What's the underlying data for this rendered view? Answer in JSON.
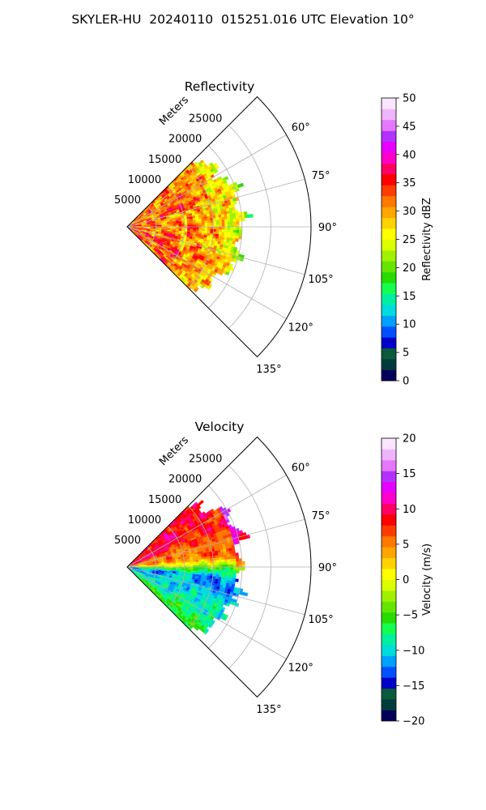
{
  "figure": {
    "title": "SKYLER-HU  20240110  015251.016 UTC Elevation 10°"
  },
  "chart_data": [
    {
      "type": "polar-sector",
      "title": "Reflectivity",
      "range_label": "Meters",
      "theta_range_deg": [
        45,
        135
      ],
      "r_max": 32000,
      "radial_ticks": [
        5000,
        10000,
        15000,
        20000,
        25000
      ],
      "radial_tick_labels": [
        "5000",
        "10000",
        "15000",
        "20000",
        "25000"
      ],
      "angle_ticks": [
        60,
        75,
        90,
        105,
        120,
        135
      ],
      "angle_tick_labels": [
        "60°",
        "75°",
        "90°",
        "105°",
        "120°",
        "135°"
      ],
      "grid": true,
      "data_extent_m": 22000,
      "colorbar": {
        "label": "Reflectivity dBZ",
        "range": [
          0,
          50
        ],
        "ticks": [
          "0",
          "5",
          "10",
          "15",
          "20",
          "25",
          "30",
          "35",
          "40",
          "45",
          "50"
        ],
        "colors": [
          "#00005a",
          "#003c3c",
          "#0a5a3c",
          "#0000c8",
          "#0050ff",
          "#00a0ff",
          "#00dcdc",
          "#00f0a0",
          "#14ff50",
          "#28dc00",
          "#64e600",
          "#a0f000",
          "#dcff00",
          "#ffff00",
          "#ffd200",
          "#ffa500",
          "#ff7800",
          "#ff3c00",
          "#ff0000",
          "#ff0064",
          "#ff00c8",
          "#e600ff",
          "#b432ff",
          "#e678ff",
          "#f0b4ff",
          "#fae6ff"
        ]
      }
    },
    {
      "type": "polar-sector",
      "title": "Velocity",
      "range_label": "Meters",
      "theta_range_deg": [
        45,
        135
      ],
      "r_max": 32000,
      "radial_ticks": [
        5000,
        10000,
        15000,
        20000,
        25000
      ],
      "radial_tick_labels": [
        "5000",
        "10000",
        "15000",
        "20000",
        "25000"
      ],
      "angle_ticks": [
        60,
        75,
        90,
        105,
        120,
        135
      ],
      "angle_tick_labels": [
        "60°",
        "75°",
        "90°",
        "105°",
        "120°",
        "135°"
      ],
      "grid": true,
      "data_extent_m": 22000,
      "colorbar": {
        "label": "Velocity (m/s)",
        "range": [
          -20,
          20
        ],
        "ticks": [
          "−20",
          "−15",
          "−10",
          "−5",
          "0",
          "5",
          "10",
          "15",
          "20"
        ],
        "colors": [
          "#00005a",
          "#003c3c",
          "#0a5a3c",
          "#0000c8",
          "#0050ff",
          "#00a0ff",
          "#00dcdc",
          "#00f0a0",
          "#14ff50",
          "#28dc00",
          "#64e600",
          "#a0f000",
          "#dcff00",
          "#ffff00",
          "#ffd200",
          "#ffa500",
          "#ff7800",
          "#ff3c00",
          "#ff0000",
          "#ff0064",
          "#ff00c8",
          "#e600ff",
          "#b432ff",
          "#e678ff",
          "#f0b4ff",
          "#fae6ff"
        ]
      }
    }
  ]
}
